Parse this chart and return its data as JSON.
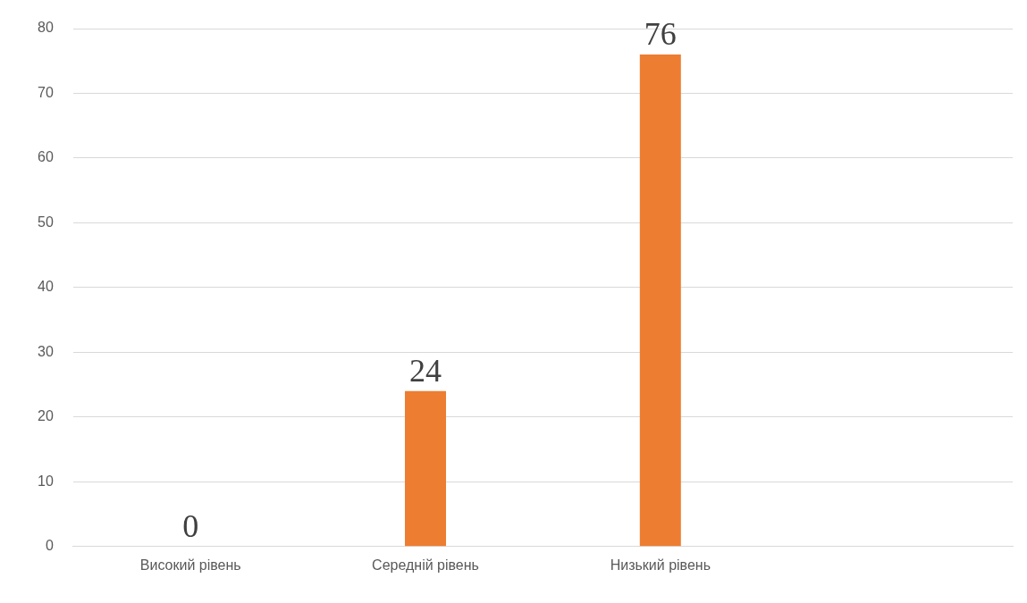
{
  "chart_data": {
    "type": "bar",
    "categories": [
      "Високий рівень",
      "Середній рівень",
      "Низький рівень",
      null
    ],
    "values": [
      0,
      24,
      76,
      null
    ],
    "color": "#ed7d31",
    "ylim": [
      0,
      80
    ],
    "yticks": [
      0,
      10,
      20,
      30,
      40,
      50,
      60,
      70,
      80
    ],
    "grid": "y",
    "legend": false,
    "data_labels": true
  }
}
